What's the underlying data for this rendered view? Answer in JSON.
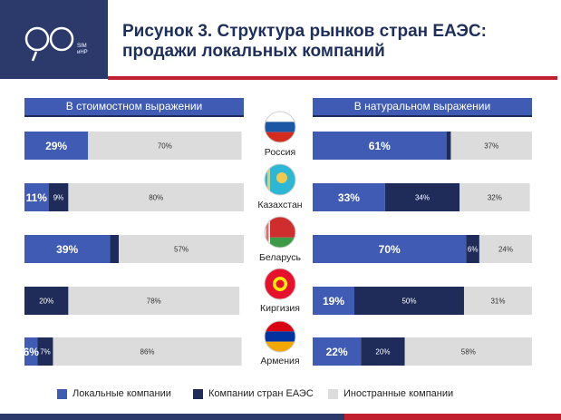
{
  "header": {
    "title_line1": "Рисунок 3. Структура рынков стран ЕАЭС:",
    "title_line2": "продажи локальных компаний",
    "logo_text": "SIM\nиНР"
  },
  "colors": {
    "local": "#3f5bb4",
    "eaeu": "#1f2c5a",
    "foreign": "#dcdcdc",
    "navy": "#2b3a6b",
    "red": "#c21f2e"
  },
  "chart_data": [
    {
      "type": "bar",
      "orientation": "horizontal",
      "stacked": true,
      "title": "В стоимостном выражении",
      "categories": [
        "Россия",
        "Казахстан",
        "Беларусь",
        "Киргизия",
        "Армения"
      ],
      "series": [
        {
          "name": "Локальные компании",
          "values": [
            29,
            11,
            39,
            0,
            6
          ]
        },
        {
          "name": "Компании стран ЕАЭС",
          "values": [
            0,
            9,
            4,
            20,
            7
          ]
        },
        {
          "name": "Иностранные компании",
          "values": [
            70,
            80,
            57,
            78,
            86
          ]
        }
      ],
      "labels": [
        [
          "29%",
          "",
          "70%"
        ],
        [
          "11%",
          "9%",
          "80%"
        ],
        [
          "39%",
          "",
          "57%"
        ],
        [
          "",
          "20%",
          "78%"
        ],
        [
          "6%",
          "7%",
          "86%"
        ]
      ],
      "xlim": [
        0,
        100
      ],
      "legend": "bottom"
    },
    {
      "type": "bar",
      "orientation": "horizontal",
      "stacked": true,
      "title": "В натуральном выражении",
      "categories": [
        "Россия",
        "Казахстан",
        "Беларусь",
        "Киргизия",
        "Армения"
      ],
      "series": [
        {
          "name": "Локальные компании",
          "values": [
            61,
            33,
            70,
            19,
            22
          ]
        },
        {
          "name": "Компании стран ЕАЭС",
          "values": [
            2,
            34,
            6,
            50,
            20
          ]
        },
        {
          "name": "Иностранные компании",
          "values": [
            37,
            32,
            24,
            31,
            58
          ]
        }
      ],
      "labels": [
        [
          "61%",
          "",
          "37%"
        ],
        [
          "33%",
          "34%",
          "32%"
        ],
        [
          "70%",
          "6%",
          "24%"
        ],
        [
          "19%",
          "50%",
          "31%"
        ],
        [
          "22%",
          "20%",
          "58%"
        ]
      ],
      "xlim": [
        0,
        100
      ],
      "legend": "bottom"
    }
  ],
  "countries": [
    {
      "name": "Россия",
      "flag": "russia-flag-icon"
    },
    {
      "name": "Казахстан",
      "flag": "kazakhstan-flag-icon"
    },
    {
      "name": "Беларусь",
      "flag": "belarus-flag-icon"
    },
    {
      "name": "Киргизия",
      "flag": "kyrgyzstan-flag-icon"
    },
    {
      "name": "Армения",
      "flag": "armenia-flag-icon"
    }
  ],
  "legend": [
    {
      "label": "Локальные компании",
      "color_key": "local"
    },
    {
      "label": "Компании стран ЕАЭС",
      "color_key": "eaeu"
    },
    {
      "label": "Иностранные компании",
      "color_key": "foreign"
    }
  ]
}
